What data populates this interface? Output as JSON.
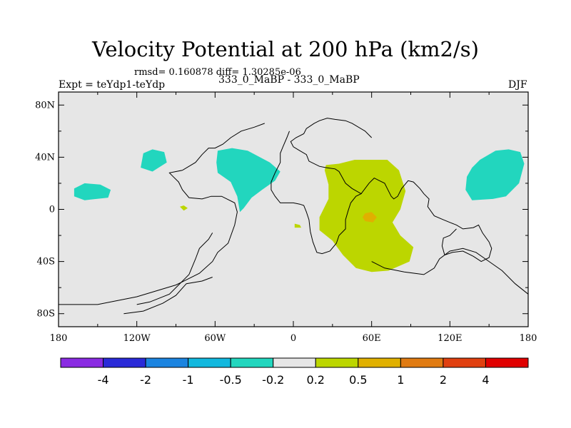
{
  "chart_data": {
    "type": "contour map",
    "title": "Velocity Potential at 200 hPa (km2/s)",
    "stats": "rmsd= 0.160878 diff= 1.30285e-06",
    "experiment": "Expt = teYdp1-teYdp",
    "cases": "333_0_MaBP - 333_0_MaBP",
    "season": "DJF",
    "x_ticks": [
      {
        "value": -180,
        "label": "180"
      },
      {
        "value": -120,
        "label": "120W"
      },
      {
        "value": -60,
        "label": "60W"
      },
      {
        "value": 0,
        "label": "0"
      },
      {
        "value": 60,
        "label": "60E"
      },
      {
        "value": 120,
        "label": "120E"
      },
      {
        "value": 180,
        "label": "180"
      }
    ],
    "y_ticks": [
      {
        "value": 80,
        "label": "80N"
      },
      {
        "value": 40,
        "label": "40N"
      },
      {
        "value": 0,
        "label": "0"
      },
      {
        "value": -40,
        "label": "40S"
      },
      {
        "value": -80,
        "label": "80S"
      }
    ],
    "xlim": [
      -180,
      180
    ],
    "ylim": [
      -90,
      90
    ],
    "colorbar": {
      "colors": [
        "#8a2be2",
        "#2a2ad8",
        "#1b84e0",
        "#12b8de",
        "#22d6be",
        "#e6e6e6",
        "#bcd600",
        "#e0b000",
        "#e07b12",
        "#e04010",
        "#e00000"
      ],
      "labels": [
        "-4",
        "-2",
        "-1",
        "-0.5",
        "-0.2",
        "0.2",
        "0.5",
        "1",
        "2",
        "4"
      ]
    },
    "regions": [
      {
        "name": "teal-north-pacific",
        "level": "-0.5 to -0.2",
        "color": "#22d6be",
        "coords": [
          [
            -168,
            16
          ],
          [
            -160,
            20
          ],
          [
            -148,
            19
          ],
          [
            -140,
            15
          ],
          [
            -142,
            9
          ],
          [
            -160,
            7
          ],
          [
            -168,
            10
          ]
        ]
      },
      {
        "name": "teal-west-us",
        "level": "-0.5 to -0.2",
        "color": "#22d6be",
        "coords": [
          [
            -115,
            43
          ],
          [
            -108,
            46
          ],
          [
            -99,
            44
          ],
          [
            -97,
            36
          ],
          [
            -108,
            29
          ],
          [
            -117,
            32
          ]
        ]
      },
      {
        "name": "teal-atlantic",
        "level": "-0.5 to -0.2",
        "color": "#22d6be",
        "coords": [
          [
            -58,
            45
          ],
          [
            -47,
            47
          ],
          [
            -35,
            45
          ],
          [
            -18,
            36
          ],
          [
            -10,
            29
          ],
          [
            -14,
            22
          ],
          [
            -24,
            15
          ],
          [
            -32,
            9
          ],
          [
            -38,
            1
          ],
          [
            -41,
            -2
          ],
          [
            -43,
            10
          ],
          [
            -48,
            21
          ],
          [
            -58,
            28
          ],
          [
            -59,
            36
          ]
        ]
      },
      {
        "name": "teal-west-pacific",
        "level": "-0.5 to -0.2",
        "color": "#22d6be",
        "coords": [
          [
            143,
            38
          ],
          [
            155,
            45
          ],
          [
            165,
            46
          ],
          [
            174,
            44
          ],
          [
            177,
            35
          ],
          [
            173,
            20
          ],
          [
            163,
            10
          ],
          [
            153,
            8
          ],
          [
            137,
            7
          ],
          [
            132,
            15
          ],
          [
            133,
            25
          ],
          [
            137,
            32
          ]
        ]
      },
      {
        "name": "green-south-america",
        "level": "0.2 to 0.5",
        "color": "#bcd600",
        "coords": [
          [
            -87,
            2
          ],
          [
            -84,
            3
          ],
          [
            -81,
            1
          ],
          [
            -84,
            -1
          ]
        ]
      },
      {
        "name": "green-atlantic-eq",
        "level": "0.2 to 0.5",
        "color": "#bcd600",
        "coords": [
          [
            1,
            -11
          ],
          [
            5,
            -12
          ],
          [
            6,
            -14
          ],
          [
            1,
            -14
          ]
        ]
      },
      {
        "name": "green-indian-ocean",
        "level": "0.2 to 0.5",
        "color": "#bcd600",
        "coords": [
          [
            25,
            34
          ],
          [
            35,
            35
          ],
          [
            47,
            38
          ],
          [
            58,
            38
          ],
          [
            72,
            38
          ],
          [
            81,
            30
          ],
          [
            86,
            14
          ],
          [
            82,
            0
          ],
          [
            76,
            -10
          ],
          [
            82,
            -20
          ],
          [
            92,
            -29
          ],
          [
            89,
            -40
          ],
          [
            73,
            -47
          ],
          [
            60,
            -48
          ],
          [
            48,
            -45
          ],
          [
            38,
            -35
          ],
          [
            30,
            -24
          ],
          [
            20,
            -16
          ],
          [
            20,
            -6
          ],
          [
            27,
            8
          ],
          [
            27,
            19
          ],
          [
            24,
            30
          ]
        ]
      },
      {
        "name": "orange-center",
        "level": "0.5 to 1",
        "color": "#e0b000",
        "coords": [
          [
            55,
            -3
          ],
          [
            60,
            -2
          ],
          [
            64,
            -6
          ],
          [
            61,
            -10
          ],
          [
            55,
            -9
          ],
          [
            53,
            -6
          ]
        ]
      }
    ],
    "coastlines": [
      {
        "name": "coast-americas",
        "coords": [
          [
            -180,
            -73
          ],
          [
            -150,
            -73
          ],
          [
            -120,
            -67
          ],
          [
            -90,
            -58
          ],
          [
            -72,
            -49
          ],
          [
            -62,
            -40
          ],
          [
            -58,
            -33
          ],
          [
            -50,
            -26
          ],
          [
            -45,
            -12
          ],
          [
            -43,
            -2
          ],
          [
            -45,
            5
          ],
          [
            -55,
            10
          ],
          [
            -63,
            10
          ],
          [
            -70,
            8
          ],
          [
            -80,
            9
          ],
          [
            -85,
            15
          ],
          [
            -88,
            21
          ],
          [
            -92,
            25
          ],
          [
            -95,
            28
          ],
          [
            -85,
            30
          ],
          [
            -75,
            36
          ],
          [
            -70,
            42
          ],
          [
            -65,
            47
          ],
          [
            -60,
            47
          ],
          [
            -54,
            50
          ],
          [
            -48,
            55
          ],
          [
            -40,
            60
          ],
          [
            -30,
            63
          ],
          [
            -22,
            66
          ]
        ]
      },
      {
        "name": "coast-south-america-inner",
        "coords": [
          [
            -120,
            -73
          ],
          [
            -110,
            -71
          ],
          [
            -95,
            -65
          ],
          [
            -88,
            -58
          ],
          [
            -80,
            -50
          ],
          [
            -75,
            -38
          ],
          [
            -72,
            -30
          ],
          [
            -65,
            -23
          ],
          [
            -62,
            -18
          ]
        ]
      },
      {
        "name": "coast-south-america-tip",
        "coords": [
          [
            -130,
            -80
          ],
          [
            -115,
            -78
          ],
          [
            -100,
            -72
          ],
          [
            -90,
            -66
          ],
          [
            -82,
            -57
          ],
          [
            -70,
            -55
          ],
          [
            -62,
            -52
          ]
        ]
      },
      {
        "name": "coast-africa-europe",
        "coords": [
          [
            -3,
            60
          ],
          [
            -5,
            55
          ],
          [
            -8,
            48
          ],
          [
            -10,
            43
          ],
          [
            -10,
            36
          ],
          [
            -14,
            28
          ],
          [
            -17,
            21
          ],
          [
            -17,
            15
          ],
          [
            -14,
            10
          ],
          [
            -10,
            5
          ],
          [
            -5,
            5
          ],
          [
            0,
            5
          ],
          [
            5,
            4
          ],
          [
            8,
            3
          ],
          [
            10,
            -2
          ],
          [
            12,
            -8
          ],
          [
            13,
            -17
          ],
          [
            15,
            -25
          ],
          [
            18,
            -33
          ],
          [
            22,
            -34
          ],
          [
            28,
            -32
          ],
          [
            33,
            -26
          ],
          [
            35,
            -20
          ],
          [
            40,
            -15
          ],
          [
            40,
            -8
          ],
          [
            42,
            -1
          ],
          [
            44,
            5
          ],
          [
            48,
            10
          ],
          [
            52,
            12
          ],
          [
            45,
            16
          ],
          [
            40,
            20
          ],
          [
            35,
            29
          ],
          [
            32,
            31
          ],
          [
            25,
            32
          ],
          [
            20,
            33
          ],
          [
            12,
            37
          ],
          [
            10,
            42
          ],
          [
            5,
            45
          ],
          [
            0,
            48
          ],
          [
            -2,
            52
          ],
          [
            2,
            55
          ],
          [
            8,
            58
          ],
          [
            10,
            62
          ],
          [
            16,
            66
          ],
          [
            20,
            68
          ],
          [
            26,
            70
          ],
          [
            32,
            69
          ],
          [
            40,
            68
          ],
          [
            45,
            66
          ],
          [
            55,
            60
          ],
          [
            60,
            55
          ]
        ]
      },
      {
        "name": "coast-asia",
        "coords": [
          [
            52,
            12
          ],
          [
            58,
            20
          ],
          [
            62,
            24
          ],
          [
            66,
            22
          ],
          [
            70,
            20
          ],
          [
            72,
            16
          ],
          [
            75,
            10
          ],
          [
            77,
            8
          ],
          [
            80,
            10
          ],
          [
            83,
            16
          ],
          [
            88,
            22
          ],
          [
            92,
            21
          ],
          [
            97,
            16
          ],
          [
            100,
            12
          ],
          [
            104,
            8
          ],
          [
            103,
            2
          ],
          [
            108,
            -5
          ],
          [
            115,
            -8
          ],
          [
            120,
            -10
          ],
          [
            125,
            -12
          ],
          [
            130,
            -15
          ],
          [
            138,
            -14
          ],
          [
            142,
            -12
          ],
          [
            145,
            -18
          ],
          [
            150,
            -25
          ],
          [
            152,
            -30
          ],
          [
            150,
            -37
          ],
          [
            144,
            -40
          ],
          [
            138,
            -36
          ],
          [
            130,
            -32
          ],
          [
            122,
            -33
          ],
          [
            116,
            -35
          ],
          [
            114,
            -28
          ],
          [
            115,
            -22
          ],
          [
            120,
            -20
          ],
          [
            125,
            -15
          ]
        ]
      },
      {
        "name": "coast-antarctic-east",
        "coords": [
          [
            60,
            -40
          ],
          [
            70,
            -45
          ],
          [
            85,
            -48
          ],
          [
            100,
            -50
          ],
          [
            108,
            -45
          ],
          [
            112,
            -38
          ],
          [
            120,
            -32
          ],
          [
            130,
            -30
          ],
          [
            140,
            -33
          ],
          [
            150,
            -40
          ],
          [
            160,
            -47
          ],
          [
            170,
            -57
          ],
          [
            180,
            -65
          ]
        ]
      }
    ]
  }
}
